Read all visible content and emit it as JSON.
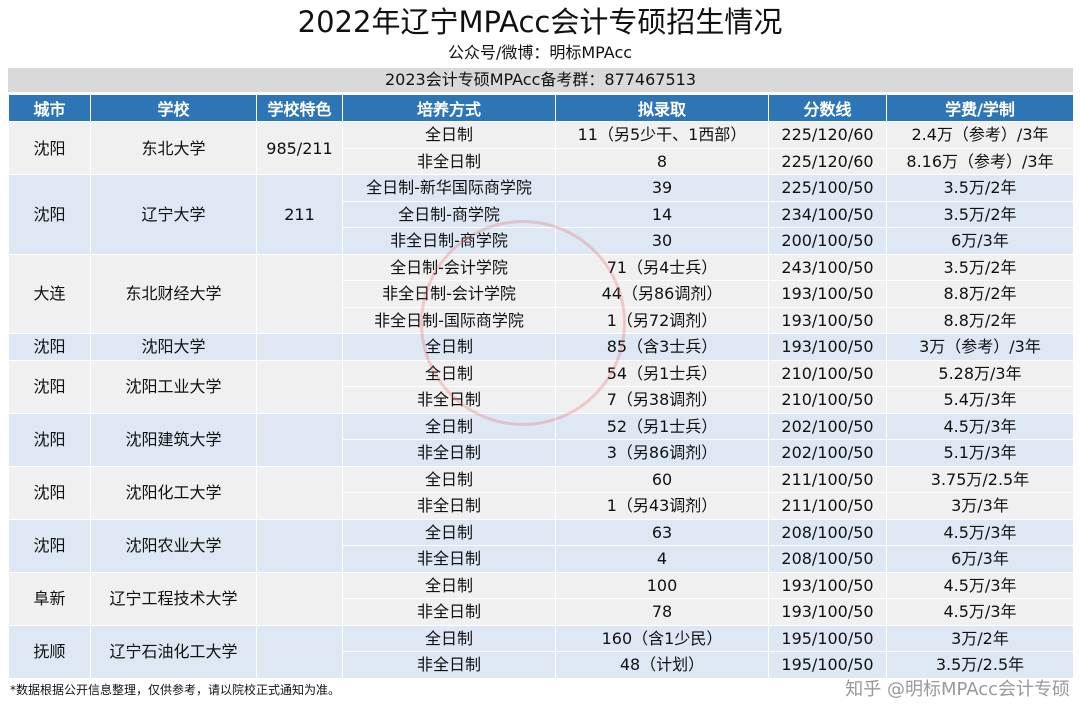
{
  "title": "2022年辽宁MPAcc会计专硕招生情况",
  "subtitle": "公众号/微博：明标MPAcc",
  "group_info": "2023会计专硕MPAcc备考群：877467513",
  "columns": [
    "城市",
    "学校",
    "学校特色",
    "培养方式",
    "拟录取",
    "分数线",
    "学费/学制"
  ],
  "schools": [
    {
      "city": "沈阳",
      "school": "东北大学",
      "feature": "985/211",
      "rows": [
        [
          "全日制",
          "11（另5少干、1西部）",
          "225/120/60",
          "2.4万（参考）/3年"
        ],
        [
          "非全日制",
          "8",
          "225/120/60",
          "8.16万（参考）/3年"
        ]
      ]
    },
    {
      "city": "沈阳",
      "school": "辽宁大学",
      "feature": "211",
      "rows": [
        [
          "全日制-新华国际商学院",
          "39",
          "225/100/50",
          "3.5万/2年"
        ],
        [
          "全日制-商学院",
          "14",
          "234/100/50",
          "3.5万/2年"
        ],
        [
          "非全日制-商学院",
          "30",
          "200/100/50",
          "6万/3年"
        ]
      ]
    },
    {
      "city": "大连",
      "school": "东北财经大学",
      "feature": "",
      "rows": [
        [
          "全日制-会计学院",
          "71（另4士兵）",
          "243/100/50",
          "3.5万/2年"
        ],
        [
          "非全日制-会计学院",
          "44（另86调剂）",
          "193/100/50",
          "8.8万/2年"
        ],
        [
          "非全日制-国际商学院",
          "1（另72调剂）",
          "193/100/50",
          "8.8万/2年"
        ]
      ]
    },
    {
      "city": "沈阳",
      "school": "沈阳大学",
      "feature": "",
      "rows": [
        [
          "全日制",
          "85（含3士兵）",
          "193/100/50",
          "3万（参考）/3年"
        ]
      ]
    },
    {
      "city": "沈阳",
      "school": "沈阳工业大学",
      "feature": "",
      "rows": [
        [
          "全日制",
          "54（另1士兵）",
          "210/100/50",
          "5.28万/3年"
        ],
        [
          "非全日制",
          "7（另38调剂）",
          "210/100/50",
          "5.4万/3年"
        ]
      ]
    },
    {
      "city": "沈阳",
      "school": "沈阳建筑大学",
      "feature": "",
      "rows": [
        [
          "全日制",
          "52（另1士兵）",
          "202/100/50",
          "4.5万/3年"
        ],
        [
          "非全日制",
          "3（另86调剂）",
          "202/100/50",
          "5.1万/3年"
        ]
      ]
    },
    {
      "city": "沈阳",
      "school": "沈阳化工大学",
      "feature": "",
      "rows": [
        [
          "全日制",
          "60",
          "211/100/50",
          "3.75万/2.5年"
        ],
        [
          "非全日制",
          "1（另43调剂）",
          "211/100/50",
          "3万/3年"
        ]
      ]
    },
    {
      "city": "沈阳",
      "school": "沈阳农业大学",
      "feature": "",
      "rows": [
        [
          "全日制",
          "63",
          "208/100/50",
          "4.5万/3年"
        ],
        [
          "非全日制",
          "4",
          "208/100/50",
          "6万/3年"
        ]
      ]
    },
    {
      "city": "阜新",
      "school": "辽宁工程技术大学",
      "feature": "",
      "rows": [
        [
          "全日制",
          "100",
          "193/100/50",
          "4.5万/3年"
        ],
        [
          "非全日制",
          "78",
          "193/100/50",
          "4.5万/3年"
        ]
      ]
    },
    {
      "city": "抚顺",
      "school": "辽宁石油化工大学",
      "feature": "",
      "rows": [
        [
          "全日制",
          "160（含1少民）",
          "195/100/50",
          "3万/2年"
        ],
        [
          "非全日制",
          "48（计划）",
          "195/100/50",
          "3.5万/2.5年"
        ]
      ]
    }
  ],
  "footnote": "*数据根据公开信息整理，仅供参考，请以院校正式通知为准。",
  "stamp_text": "明标MPAcc",
  "watermark": "知乎 @明标MPAcc会计专硕",
  "colors": {
    "header": "#2e75b6",
    "row_gray": "#f0f0f0",
    "row_blue": "#dde8f4",
    "group_bar": "#d9d9d9"
  }
}
